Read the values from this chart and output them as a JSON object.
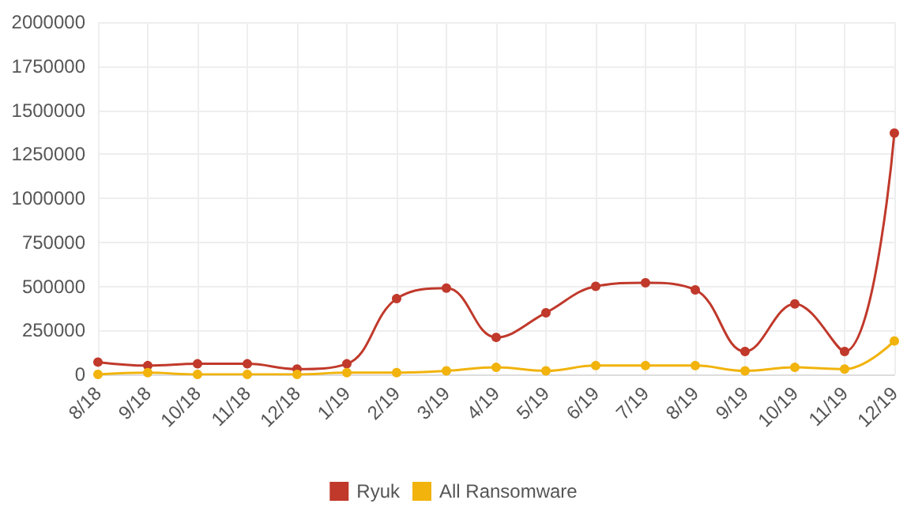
{
  "chart_data": {
    "type": "line",
    "categories": [
      "8/18",
      "9/18",
      "10/18",
      "11/18",
      "12/18",
      "1/19",
      "2/19",
      "3/19",
      "4/19",
      "5/19",
      "6/19",
      "7/19",
      "8/19",
      "9/19",
      "10/19",
      "11/19",
      "12/19"
    ],
    "series": [
      {
        "name": "Ryuk",
        "color": "#c0392b",
        "values": [
          70000,
          50000,
          60000,
          60000,
          30000,
          60000,
          430000,
          490000,
          210000,
          350000,
          500000,
          520000,
          480000,
          130000,
          400000,
          130000,
          1370000
        ]
      },
      {
        "name": "All Ransomware",
        "color": "#f1b30c",
        "values": [
          0,
          10000,
          0,
          0,
          0,
          10000,
          10000,
          20000,
          40000,
          20000,
          50000,
          50000,
          50000,
          20000,
          40000,
          30000,
          190000
        ]
      }
    ],
    "ylim": [
      0,
      2000000
    ],
    "yticks": [
      0,
      250000,
      500000,
      750000,
      1000000,
      1250000,
      1500000,
      1750000,
      2000000
    ],
    "grid": true,
    "legend": "bottom",
    "marker": "circle",
    "line_style": "solid"
  }
}
